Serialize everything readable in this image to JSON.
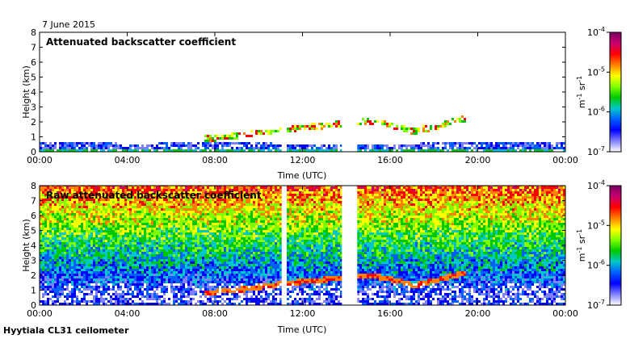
{
  "header": {
    "date": "7 June 2015"
  },
  "footer": {
    "caption": "Hyytiala CL31 ceilometer"
  },
  "colorbar": {
    "ticks": [
      "10",
      "10",
      "10",
      "10"
    ],
    "exponents": [
      "-4",
      "-5",
      "-6",
      "-7"
    ],
    "unit_m": "m",
    "unit_m_exp": "-1",
    "unit_sr": " sr",
    "unit_sr_exp": "-1",
    "colors": [
      "#7a0060",
      "#c8006e",
      "#ff0000",
      "#ff8000",
      "#ffff00",
      "#80ff00",
      "#00c800",
      "#00c8c8",
      "#0060ff",
      "#0000ff",
      "#8080ff",
      "#ffffff"
    ]
  },
  "chart_data": [
    {
      "type": "heatmap",
      "title": "Attenuated backscatter coefficient",
      "xlabel": "Time (UTC)",
      "ylabel": "Height (km)",
      "xlim": [
        0,
        24
      ],
      "ylim": [
        0,
        8
      ],
      "xticks": [
        "00:00",
        "04:00",
        "08:00",
        "12:00",
        "16:00",
        "20:00",
        "00:00"
      ],
      "yticks": [
        "0",
        "1",
        "2",
        "3",
        "4",
        "5",
        "6",
        "7",
        "8"
      ],
      "colorbar_range": [
        "1e-7",
        "1e-4"
      ],
      "data_gaps_hours": [
        [
          11.05,
          11.25
        ],
        [
          13.8,
          14.5
        ]
      ],
      "boundary_layer_top_km": [
        [
          0,
          0.7
        ],
        [
          4,
          0.55
        ],
        [
          8,
          0.6
        ],
        [
          12,
          0.55
        ],
        [
          16,
          0.55
        ],
        [
          20,
          0.6
        ],
        [
          24,
          0.6
        ]
      ],
      "cloud_base_km": [
        [
          7.5,
          0.8
        ],
        [
          9,
          1.0
        ],
        [
          10.5,
          1.3
        ],
        [
          11.5,
          1.5
        ],
        [
          13,
          1.7
        ],
        [
          15,
          2.0
        ],
        [
          16.5,
          1.6
        ],
        [
          17,
          1.3
        ],
        [
          18,
          1.6
        ],
        [
          19.5,
          2.2
        ]
      ]
    },
    {
      "type": "heatmap",
      "title": "Raw attenuated backscatter coefficient",
      "xlabel": "Time (UTC)",
      "ylabel": "Height (km)",
      "xlim": [
        0,
        24
      ],
      "ylim": [
        0,
        8
      ],
      "xticks": [
        "00:00",
        "04:00",
        "08:00",
        "12:00",
        "16:00",
        "20:00",
        "00:00"
      ],
      "yticks": [
        "0",
        "1",
        "2",
        "3",
        "4",
        "5",
        "6",
        "7",
        "8"
      ],
      "colorbar_range": [
        "1e-7",
        "1e-4"
      ],
      "data_gaps_hours": [
        [
          11.05,
          11.25
        ],
        [
          13.8,
          14.5
        ]
      ],
      "cloud_base_km": [
        [
          7.5,
          0.8
        ],
        [
          9,
          1.0
        ],
        [
          10.5,
          1.3
        ],
        [
          11.5,
          1.5
        ],
        [
          13,
          1.7
        ],
        [
          15,
          2.0
        ],
        [
          16.5,
          1.6
        ],
        [
          17,
          1.3
        ],
        [
          18,
          1.6
        ],
        [
          19.5,
          2.2
        ]
      ]
    }
  ]
}
